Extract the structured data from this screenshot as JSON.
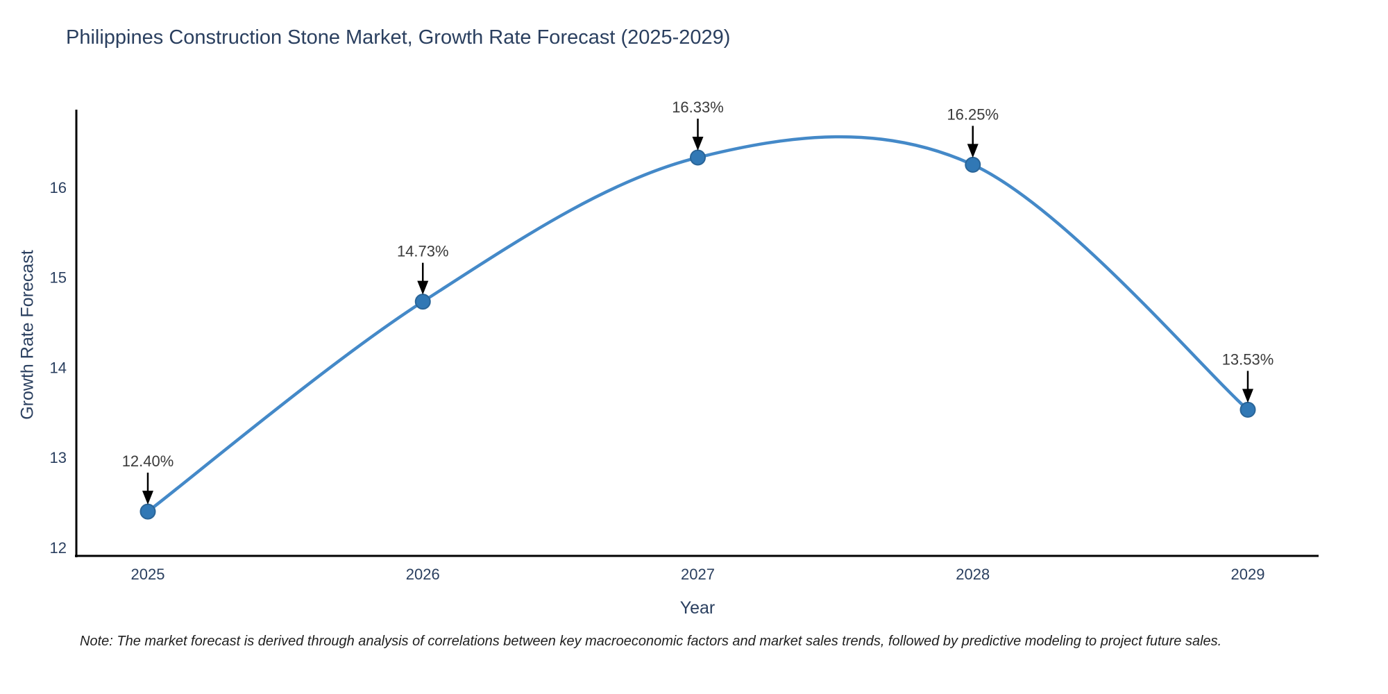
{
  "title": "Philippines Construction Stone Market, Growth Rate Forecast (2025-2029)",
  "note": "Note: The market forecast is derived through analysis of correlations between key macroeconomic factors and market sales trends, followed by predictive modeling to project future sales.",
  "chart_data": {
    "type": "line",
    "title": "Philippines Construction Stone Market, Growth Rate Forecast (2025-2029)",
    "xlabel": "Year",
    "ylabel": "Growth Rate Forecast",
    "x": [
      2025,
      2026,
      2027,
      2028,
      2029
    ],
    "series": [
      {
        "name": "Growth Rate Forecast",
        "values": [
          12.4,
          14.73,
          16.33,
          16.25,
          13.53
        ]
      }
    ],
    "point_labels": [
      "12.40%",
      "14.73%",
      "16.33%",
      "16.25%",
      "13.53%"
    ],
    "xticks": [
      "2025",
      "2026",
      "2027",
      "2028",
      "2029"
    ],
    "yticks": [
      12,
      13,
      14,
      15,
      16
    ],
    "xlim": [
      2024.74,
      2029.26
    ],
    "ylim": [
      11.91,
      16.86
    ],
    "grid": false,
    "legend_position": "none",
    "smooth": true,
    "colors": {
      "line": "#4489c8",
      "marker": "#3178b5",
      "marker_edge": "#2a6598",
      "axis": "#000000",
      "tick_text": "#2a3f5f",
      "annotation_text": "#3a3a3a",
      "annotation_arrow": "#000000",
      "title_text": "#2a3f5f",
      "background": "#ffffff"
    }
  }
}
